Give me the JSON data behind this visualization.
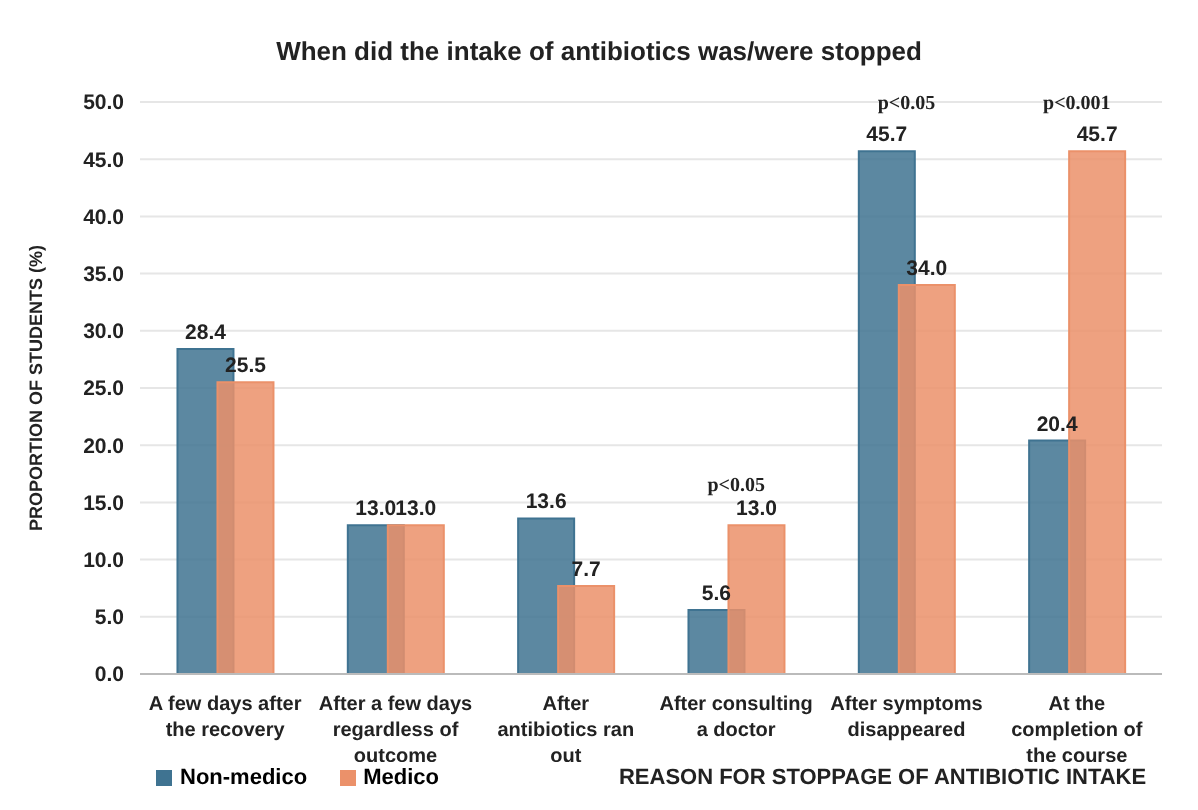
{
  "chart_data": {
    "type": "bar",
    "title": "When did the intake of antibiotics was/were stopped",
    "xlabel": "REASON FOR STOPPAGE OF ANTIBIOTIC INTAKE",
    "ylabel": "PROPORTION OF STUDENTS (%)",
    "categories": [
      "A few days after the recovery",
      "After a few days regardless of outcome",
      "After antibiotics ran out",
      "After consulting a doctor",
      "After symptoms disappeared",
      "At the completion of the course"
    ],
    "series": [
      {
        "name": "Non-medico",
        "color": "#3f7391",
        "values": [
          28.4,
          13.0,
          13.6,
          5.6,
          45.7,
          20.4
        ],
        "value_labels": [
          "28.4",
          "13.0",
          "13.6",
          "5.6",
          "45.7",
          "20.4"
        ]
      },
      {
        "name": "Medico",
        "color": "#eb916a",
        "values": [
          25.5,
          13.0,
          7.7,
          13.0,
          34.0,
          45.7
        ],
        "value_labels": [
          "25.5",
          "13.0",
          "7.7",
          "13.0",
          "34.0",
          "45.7"
        ]
      }
    ],
    "ylim": [
      0,
      50
    ],
    "yticks": [
      {
        "value": 0,
        "label": "0.0"
      },
      {
        "value": 5,
        "label": "5.0"
      },
      {
        "value": 10,
        "label": "10.0"
      },
      {
        "value": 15,
        "label": "15.0"
      },
      {
        "value": 20,
        "label": "20.0"
      },
      {
        "value": 25,
        "label": "25.0"
      },
      {
        "value": 30,
        "label": "30.0"
      },
      {
        "value": 35,
        "label": "35.0"
      },
      {
        "value": 40,
        "label": "40.0"
      },
      {
        "value": 45,
        "label": "45.0"
      },
      {
        "value": 50,
        "label": "50.0"
      }
    ],
    "annotations": [
      "p<0.05",
      "p<0.05",
      "p<0.001"
    ],
    "grid": "y",
    "legend": "bottom left"
  }
}
